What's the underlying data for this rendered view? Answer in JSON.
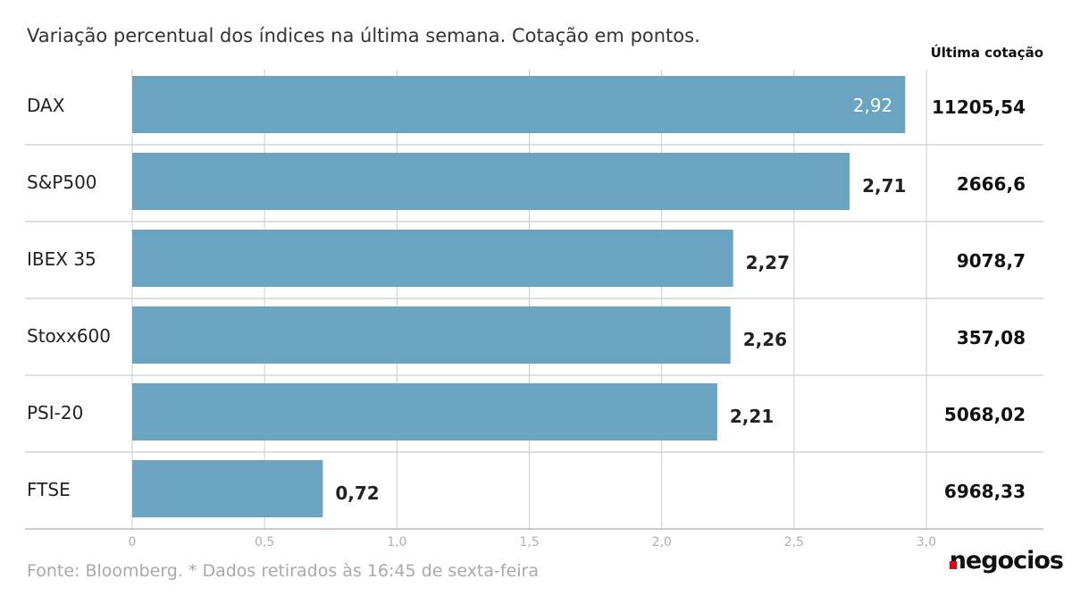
{
  "subtitle": "Variação percentual dos índices na última semana. Cotação em pontos.",
  "column_header": "Última cotação",
  "source": "Fonte: Bloomberg.  * Dados retirados às 16:45 de sexta-feira",
  "logo": "negocios",
  "colors": {
    "bar": "#6aa4c0",
    "grid": "#cccccc",
    "axis": "#bbbbbb",
    "tick": "#b0b0b0",
    "logo_accent": "#e2001a"
  },
  "chart_data": {
    "type": "bar",
    "orientation": "horizontal",
    "categories": [
      "DAX",
      "S&P500",
      "IBEX 35",
      "Stoxx600",
      "PSI-20",
      "FTSE"
    ],
    "values": [
      2.92,
      2.71,
      2.27,
      2.26,
      2.21,
      0.72
    ],
    "value_labels": [
      "2,92",
      "2,71",
      "2,27",
      "2,26",
      "2,21",
      "0,72"
    ],
    "last_quote": [
      "11205,54",
      "2666,6",
      "9078,7",
      "357,08",
      "5068,02",
      "6968,33"
    ],
    "xlim": [
      0,
      3.0
    ],
    "xticks": [
      0,
      0.5,
      1.0,
      1.5,
      2.0,
      2.5,
      3.0
    ],
    "xtick_labels": [
      "0",
      "0,5",
      "1,0",
      "1,5",
      "2,0",
      "2,5",
      "3,0"
    ],
    "grid": "vertical"
  }
}
